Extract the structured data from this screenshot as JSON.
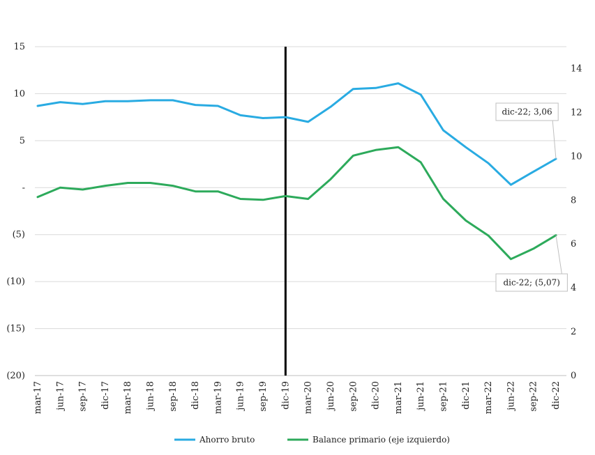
{
  "chart_data": {
    "type": "line",
    "categories": [
      "mar-17",
      "jun-17",
      "sep-17",
      "dic-17",
      "mar-18",
      "jun-18",
      "sep-18",
      "dic-18",
      "mar-19",
      "jun-19",
      "sep-19",
      "dic-19",
      "mar-20",
      "jun-20",
      "sep-20",
      "dic-20",
      "mar-21",
      "jun-21",
      "sep-21",
      "dic-21",
      "mar-22",
      "jun-22",
      "sep-22",
      "dic-22"
    ],
    "left_axis": {
      "ylim": [
        -20,
        15
      ],
      "ticks": [
        15,
        10,
        5,
        0,
        -5,
        -10,
        -15,
        -20
      ],
      "tick_labels": [
        "15",
        "10",
        "5",
        "-",
        "(5)",
        "(10)",
        "(15)",
        "(20)"
      ]
    },
    "right_axis": {
      "ylim": [
        0,
        15
      ],
      "ticks": [
        0,
        2,
        4,
        6,
        8,
        10,
        12,
        14
      ],
      "tick_labels": [
        "0",
        "2",
        "4",
        "6",
        "8",
        "10",
        "12",
        "14"
      ]
    },
    "grid": true,
    "vertical_marker_category": "dic-19",
    "legend_placement": "bottom",
    "series": [
      {
        "name": "Ahorro bruto",
        "color": "#29abe2",
        "axis": "left",
        "values": [
          8.7,
          9.1,
          8.9,
          9.2,
          9.2,
          9.3,
          9.3,
          8.8,
          8.7,
          7.7,
          7.4,
          7.5,
          7.0,
          8.6,
          10.5,
          10.6,
          11.1,
          9.9,
          6.1,
          4.3,
          2.6,
          0.3,
          1.7,
          3.06
        ]
      },
      {
        "name": "Balance primario (eje izquierdo)",
        "color": "#2daa5b",
        "axis": "left",
        "values": [
          -1.0,
          0.0,
          -0.2,
          0.2,
          0.5,
          0.5,
          0.2,
          -0.4,
          -0.4,
          -1.2,
          -1.3,
          -0.9,
          -1.2,
          0.9,
          3.4,
          4.0,
          4.3,
          2.7,
          -1.2,
          -3.5,
          -5.1,
          -7.6,
          -6.5,
          -5.07
        ]
      }
    ],
    "annotations": [
      {
        "series": 0,
        "category": "dic-22",
        "text": "dic-22; 3,06"
      },
      {
        "series": 1,
        "category": "dic-22",
        "text": "dic-22; (5,07)"
      }
    ]
  }
}
